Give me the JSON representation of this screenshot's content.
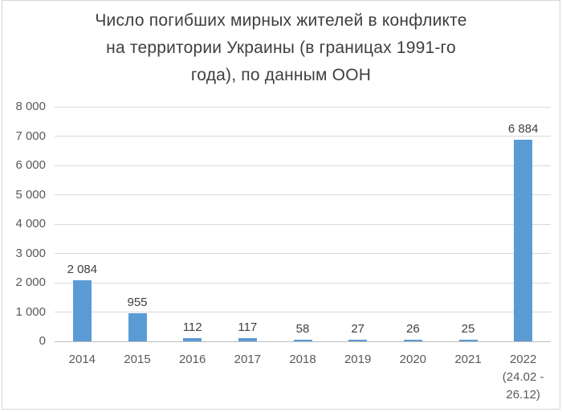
{
  "chart_data": {
    "type": "bar",
    "title": "Число погибших мирных жителей в конфликте на территории Украины (в границах 1991-го года), по данным ООН",
    "title_lines": [
      "Число погибших мирных жителей в конфликте",
      "на территории Украины (в границах 1991-го",
      "года), по данным ООН"
    ],
    "categories": [
      "2014",
      "2015",
      "2016",
      "2017",
      "2018",
      "2019",
      "2020",
      "2021",
      "2022\n(24.02 -\n26.12)"
    ],
    "values": [
      2084,
      955,
      112,
      117,
      58,
      27,
      26,
      25,
      6884
    ],
    "value_labels": [
      "2 084",
      "955",
      "112",
      "117",
      "58",
      "27",
      "26",
      "25",
      "6 884"
    ],
    "xlabel": "",
    "ylabel": "",
    "ylim": [
      0,
      8000
    ],
    "ytick_step": 1000,
    "ytick_labels": [
      "0",
      "1 000",
      "2 000",
      "3 000",
      "4 000",
      "5 000",
      "6 000",
      "7 000",
      "8 000"
    ],
    "grid": true,
    "legend": false,
    "colors": {
      "bar": "#5B9BD5",
      "gridline": "#D9D9D9",
      "axis_line": "#BDBDBD",
      "tick_label": "#595959",
      "value_label": "#404040",
      "title": "#3F3F3F",
      "frame_border": "#D6D6D6"
    }
  }
}
